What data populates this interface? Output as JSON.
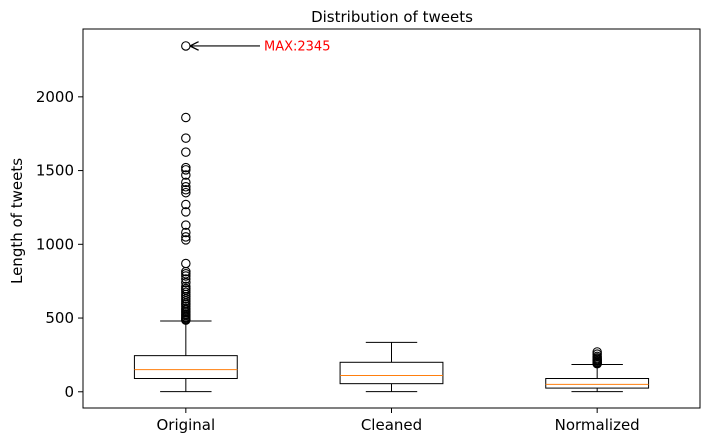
{
  "chart_data": {
    "type": "boxplot",
    "title": "Distribution of tweets",
    "xlabel": "",
    "ylabel": "Length of tweets",
    "ylim": [
      -110,
      2460
    ],
    "yticks": [
      0,
      500,
      1000,
      1500,
      2000
    ],
    "categories": [
      "Original",
      "Cleaned",
      "Normalized"
    ],
    "median_color": "#ff7f0e",
    "annotation": {
      "text": "MAX:2345",
      "target": [
        1,
        2345
      ],
      "text_pos": [
        1.38,
        2345
      ],
      "color": "#ff0000"
    },
    "boxes": [
      {
        "name": "Original",
        "whisker_low": 1,
        "q1": 90,
        "median": 150,
        "q3": 245,
        "whisker_high": 480,
        "fliers": [
          2345,
          1860,
          1720,
          1625,
          1520,
          1505,
          1470,
          1420,
          1390,
          1370,
          1350,
          1270,
          1220,
          1130,
          1080,
          1050,
          1030,
          870,
          815,
          800,
          785,
          765,
          740,
          715,
          700,
          690,
          675,
          660,
          645,
          630,
          615,
          600,
          590,
          578,
          565,
          555,
          545,
          535,
          525,
          517,
          508,
          500,
          492,
          486
        ]
      },
      {
        "name": "Cleaned",
        "whisker_low": 1,
        "q1": 55,
        "median": 110,
        "q3": 200,
        "whisker_high": 335,
        "fliers": []
      },
      {
        "name": "Normalized",
        "whisker_low": 1,
        "q1": 25,
        "median": 50,
        "q3": 90,
        "whisker_high": 185,
        "fliers": [
          270,
          255,
          240,
          230,
          222,
          215,
          208,
          200,
          195,
          190
        ]
      }
    ]
  }
}
